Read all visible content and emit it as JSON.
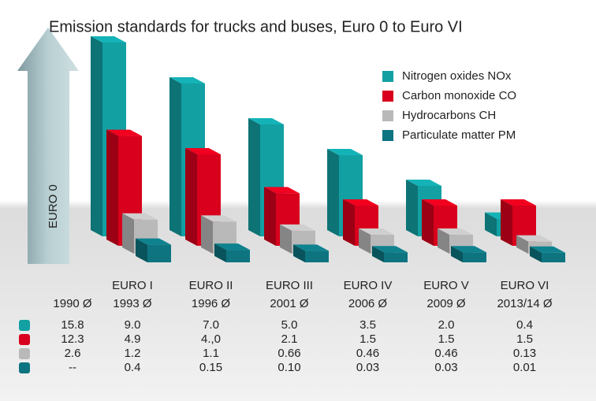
{
  "chart_data": {
    "type": "bar3d",
    "title": "Emission standards for trucks and buses, Euro 0 to Euro VI",
    "categories": [
      "EURO 0",
      "EURO I",
      "EURO II",
      "EURO III",
      "EURO IV",
      "EURO V",
      "EURO VI"
    ],
    "years": [
      "1990 Ø",
      "1993 Ø",
      "1996 Ø",
      "2001 Ø",
      "2006 Ø",
      "2009 Ø",
      "2013/14 Ø"
    ],
    "series": [
      {
        "name": "Nitrogen oxides NOx",
        "color": "#12a0a3",
        "values": [
          15.8,
          9.0,
          7.0,
          5.0,
          3.5,
          2.0,
          0.4
        ],
        "value_labels": [
          "15.8",
          "9.0",
          "7.0",
          "5.0",
          "3.5",
          "2.0",
          "0.4"
        ]
      },
      {
        "name": "Carbon monoxide CO",
        "color": "#d8001c",
        "values": [
          12.3,
          4.9,
          4.0,
          2.1,
          1.5,
          1.5,
          1.5
        ],
        "value_labels": [
          "12.3",
          "4.9",
          "4.,0",
          "2.1",
          "1.5",
          "1.5",
          "1.5"
        ]
      },
      {
        "name": "Hydrocarbons CH",
        "color": "#b9b9b9",
        "values": [
          2.6,
          1.2,
          1.1,
          0.66,
          0.46,
          0.46,
          0.13
        ],
        "value_labels": [
          "2.6",
          "1.2",
          "1.1",
          "0.66",
          "0.46",
          "0.46",
          "0.13"
        ]
      },
      {
        "name": "Particulate matter PM",
        "color": "#0d7480",
        "values": [
          null,
          0.4,
          0.15,
          0.1,
          0.03,
          0.03,
          0.01
        ],
        "value_labels": [
          "--",
          "0.4",
          "0.15",
          "0.10",
          "0.03",
          "0.03",
          "0.01"
        ]
      }
    ]
  }
}
